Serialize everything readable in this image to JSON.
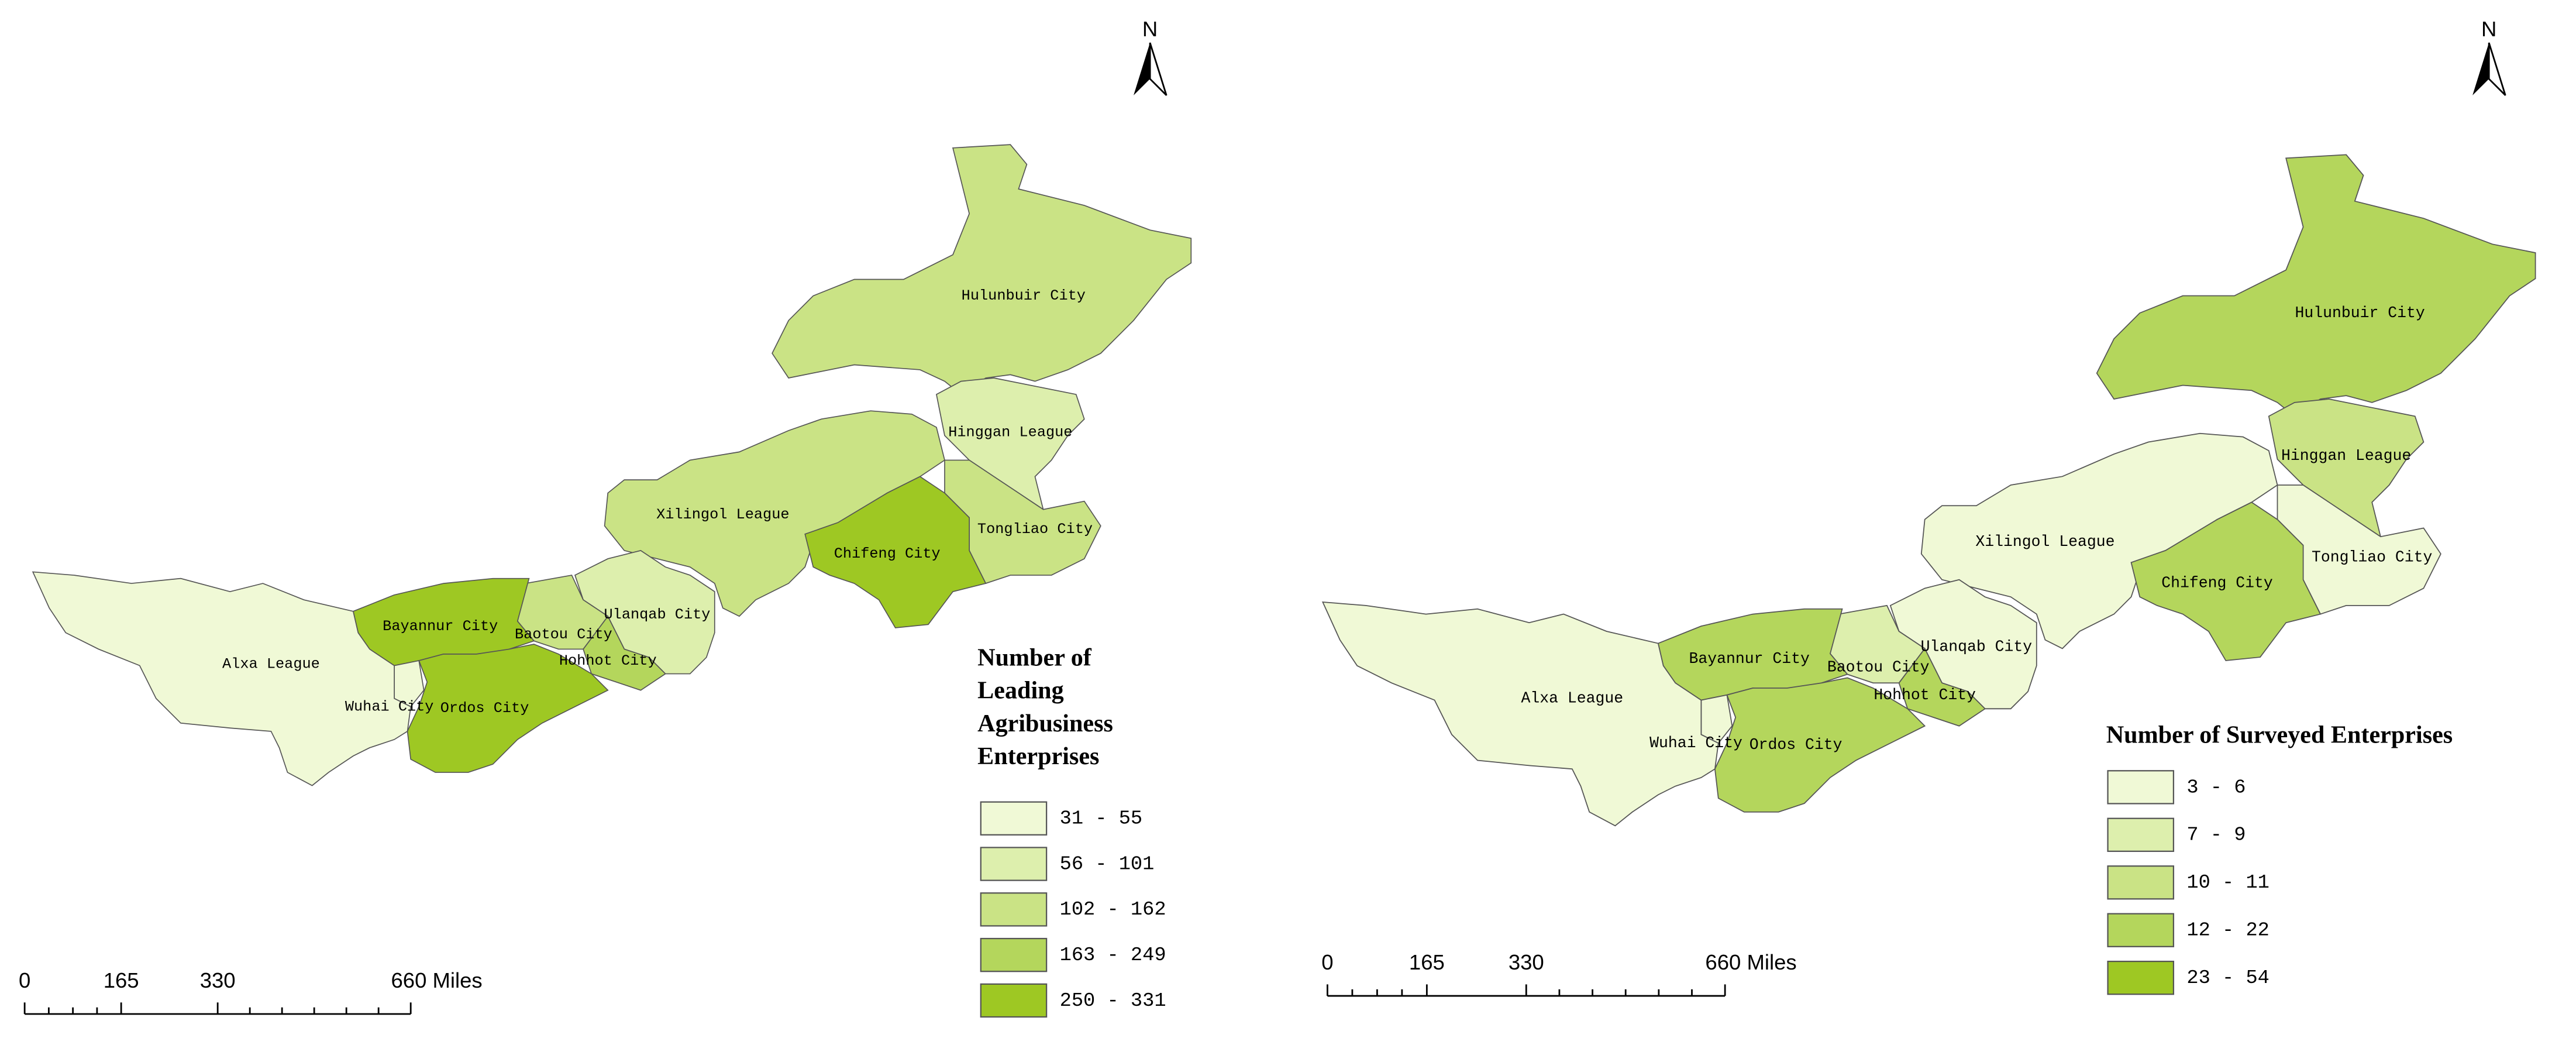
{
  "maps": [
    {
      "north_label": "N",
      "regions": [
        {
          "name": "Hulunbuir City",
          "color": "#cae385"
        },
        {
          "name": "Hinggan League",
          "color": "#ddefad"
        },
        {
          "name": "Xilingol League",
          "color": "#cae385"
        },
        {
          "name": "Tongliao City",
          "color": "#cae385"
        },
        {
          "name": "Chifeng City",
          "color": "#9ec823"
        },
        {
          "name": "Ulanqab City",
          "color": "#ddefad"
        },
        {
          "name": "Hohhot City",
          "color": "#b4d65c"
        },
        {
          "name": "Baotou City",
          "color": "#cae385"
        },
        {
          "name": "Bayannur City",
          "color": "#9ec823"
        },
        {
          "name": "Ordos City",
          "color": "#9ec823"
        },
        {
          "name": "Wuhai City",
          "color": "#f0f9d6"
        },
        {
          "name": "Alxa League",
          "color": "#f0f9d6"
        }
      ],
      "legend": {
        "title_lines": [
          "Number of",
          "Leading",
          "Agribusiness",
          "Enterprises"
        ],
        "items": [
          {
            "label": "31 - 55",
            "color": "#f0f9d6"
          },
          {
            "label": "56 - 101",
            "color": "#ddefad"
          },
          {
            "label": "102 - 162",
            "color": "#cae385"
          },
          {
            "label": "163 - 249",
            "color": "#b4d65c"
          },
          {
            "label": "250 - 331",
            "color": "#9ec823"
          }
        ]
      },
      "scale_bar": {
        "ticks": [
          0,
          165,
          330,
          {
            "value": 660,
            "label": "660 Miles"
          }
        ]
      }
    },
    {
      "north_label": "N",
      "regions": [
        {
          "name": "Hulunbuir City",
          "color": "#b4d65c"
        },
        {
          "name": "Hinggan League",
          "color": "#cae385"
        },
        {
          "name": "Xilingol League",
          "color": "#f0f9d6"
        },
        {
          "name": "Tongliao City",
          "color": "#f0f9d6"
        },
        {
          "name": "Chifeng City",
          "color": "#b4d65c"
        },
        {
          "name": "Ulanqab City",
          "color": "#f0f9d6"
        },
        {
          "name": "Hohhot City",
          "color": "#b4d65c"
        },
        {
          "name": "Baotou City",
          "color": "#ddefad"
        },
        {
          "name": "Bayannur City",
          "color": "#b4d65c"
        },
        {
          "name": "Ordos City",
          "color": "#b4d65c"
        },
        {
          "name": "Wuhai City",
          "color": "#f0f9d6"
        },
        {
          "name": "Alxa League",
          "color": "#f0f9d6"
        }
      ],
      "legend": {
        "title_lines": [
          "Number of Surveyed Enterprises"
        ],
        "items": [
          {
            "label": "3 - 6",
            "color": "#f0f9d6"
          },
          {
            "label": "7 - 9",
            "color": "#ddefad"
          },
          {
            "label": "10 - 11",
            "color": "#cae385"
          },
          {
            "label": "12 - 22",
            "color": "#b4d65c"
          },
          {
            "label": "23 - 54",
            "color": "#9ec823"
          }
        ]
      },
      "scale_bar": {
        "ticks": [
          0,
          165,
          330,
          {
            "value": 660,
            "label": "660 Miles"
          }
        ]
      }
    }
  ]
}
